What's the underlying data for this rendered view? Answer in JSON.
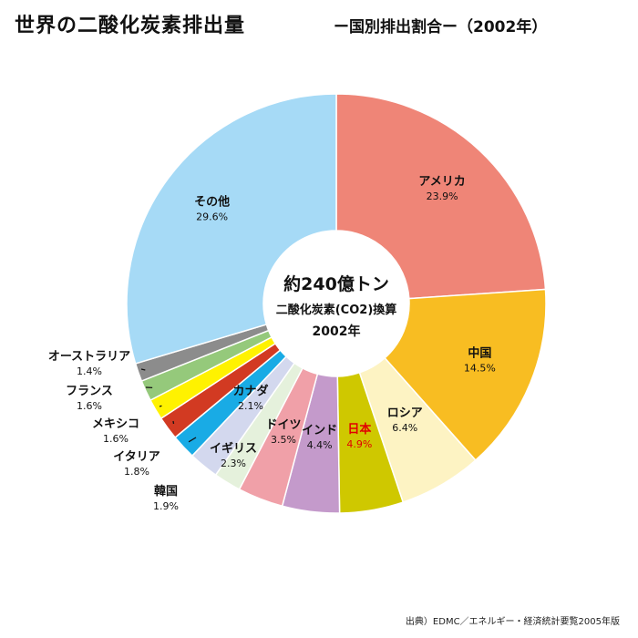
{
  "title": "世界の二酸化炭素排出量",
  "subtitle": "ー国別排出割合ー（2002年）",
  "center_text": {
    "line1": "約240億トン",
    "line2": "二酸化炭素(CO2)換算",
    "line3": "2002年"
  },
  "source": "出典）EDMC／エネルギー・経済統計要覧2005年版",
  "chart_data": {
    "type": "pie",
    "style": "donut",
    "unit": "%",
    "slices": [
      {
        "label": "アメリカ",
        "value": 23.9,
        "value_label": "23.9%",
        "color": "#ef8577",
        "label_color": "#111111"
      },
      {
        "label": "中国",
        "value": 14.5,
        "value_label": "14.5%",
        "color": "#f8bd22",
        "label_color": "#111111"
      },
      {
        "label": "ロシア",
        "value": 6.4,
        "value_label": "6.4%",
        "color": "#fdf3c3",
        "label_color": "#111111"
      },
      {
        "label": "日本",
        "value": 4.9,
        "value_label": "4.9%",
        "color": "#cfc800",
        "label_color": "#e10000"
      },
      {
        "label": "インド",
        "value": 4.4,
        "value_label": "4.4%",
        "color": "#c49acb",
        "label_color": "#111111"
      },
      {
        "label": "ドイツ",
        "value": 3.5,
        "value_label": "3.5%",
        "color": "#f0a0a8",
        "label_color": "#111111"
      },
      {
        "label": "カナダ",
        "value": 2.1,
        "value_label": "2.1%",
        "color": "#e5f1dc",
        "label_color": "#111111"
      },
      {
        "label": "イギリス",
        "value": 2.3,
        "value_label": "2.3%",
        "color": "#d3d8ee",
        "label_color": "#111111"
      },
      {
        "label": "韓国",
        "value": 1.9,
        "value_label": "1.9%",
        "color": "#19abe5",
        "label_color": "#111111"
      },
      {
        "label": "イタリア",
        "value": 1.8,
        "value_label": "1.8%",
        "color": "#d23a22",
        "label_color": "#111111"
      },
      {
        "label": "メキシコ",
        "value": 1.6,
        "value_label": "1.6%",
        "color": "#fff200",
        "label_color": "#111111"
      },
      {
        "label": "フランス",
        "value": 1.6,
        "value_label": "1.6%",
        "color": "#95c97b",
        "label_color": "#111111"
      },
      {
        "label": "オーストラリア",
        "value": 1.4,
        "value_label": "1.4%",
        "color": "#8c8c8c",
        "label_color": "#111111"
      },
      {
        "label": "その他",
        "value": 29.6,
        "value_label": "29.6%",
        "color": "#a6daf6",
        "label_color": "#111111"
      }
    ]
  }
}
